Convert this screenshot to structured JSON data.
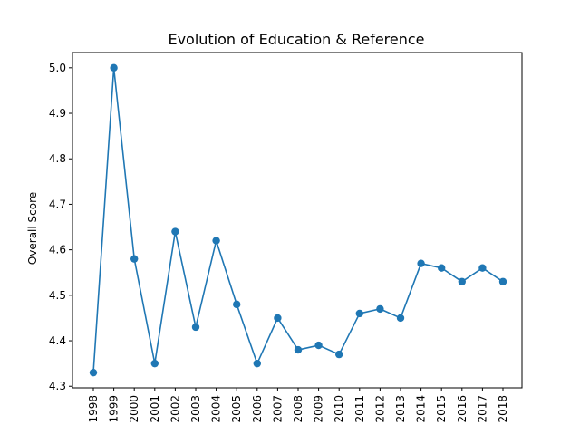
{
  "chart_data": {
    "type": "line",
    "title": "Evolution of Education & Reference",
    "xlabel": "",
    "ylabel": "Overall Score",
    "x": [
      "1998",
      "1999",
      "2000",
      "2001",
      "2002",
      "2003",
      "2004",
      "2005",
      "2006",
      "2007",
      "2008",
      "2009",
      "2010",
      "2011",
      "2012",
      "2013",
      "2014",
      "2015",
      "2016",
      "2017",
      "2018"
    ],
    "series": [
      {
        "values": [
          4.33,
          5.0,
          4.58,
          4.35,
          4.64,
          4.43,
          4.62,
          4.48,
          4.35,
          4.45,
          4.38,
          4.39,
          4.37,
          4.46,
          4.47,
          4.45,
          4.57,
          4.56,
          4.53,
          4.56,
          4.53
        ],
        "color": "#1f77b4",
        "marker": "circle"
      }
    ],
    "yticks": [
      "4.3",
      "4.4",
      "4.5",
      "4.6",
      "4.7",
      "4.8",
      "4.9",
      "5.0"
    ],
    "ylim": [
      4.2965,
      5.0335
    ],
    "x_tick_rotation": "vertical",
    "grid": false,
    "legend": "none"
  }
}
